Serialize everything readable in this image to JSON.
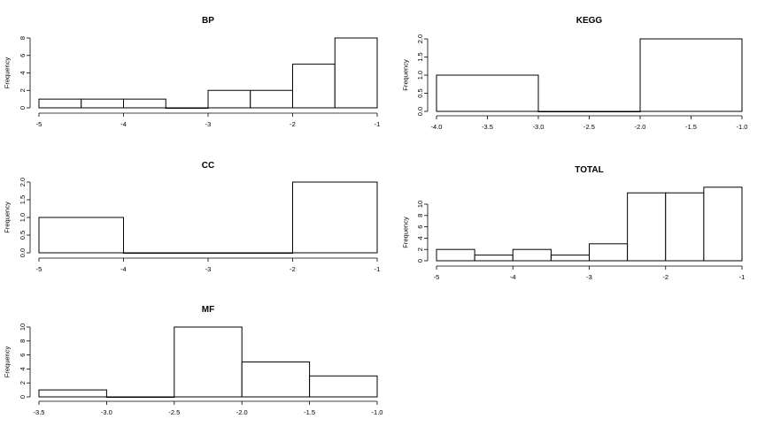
{
  "chart_data": [
    {
      "type": "bar",
      "title": "BP",
      "ylabel": "Frequency",
      "bin_edges": [
        -5,
        -4.5,
        -4,
        -3.5,
        -3,
        -2.5,
        -2,
        -1.5,
        -1
      ],
      "values": [
        1,
        1,
        1,
        0,
        2,
        2,
        5,
        8
      ],
      "xlim": [
        -5,
        -1
      ],
      "ylim": [
        0,
        8
      ],
      "xticks": [
        -5,
        -4,
        -3,
        -2,
        -1
      ],
      "xtick_labels": [
        "-5",
        "-4",
        "-3",
        "-2",
        "-1"
      ],
      "yticks": [
        0,
        2,
        4,
        6,
        8
      ],
      "ytick_labels": [
        "0",
        "2",
        "4",
        "6",
        "8"
      ],
      "grid": false
    },
    {
      "type": "bar",
      "title": "KEGG",
      "ylabel": "Frequency",
      "bin_edges": [
        -4,
        -3,
        -2,
        -1
      ],
      "values": [
        1,
        0,
        2
      ],
      "xlim": [
        -4,
        -1
      ],
      "ylim": [
        0,
        2
      ],
      "xticks": [
        -4,
        -3.5,
        -3,
        -2.5,
        -2,
        -1.5,
        -1
      ],
      "xtick_labels": [
        "-4.0",
        "-3.5",
        "-3.0",
        "-2.5",
        "-2.0",
        "-1.5",
        "-1.0"
      ],
      "yticks": [
        0,
        0.5,
        1,
        1.5,
        2
      ],
      "ytick_labels": [
        "0.0",
        "0.5",
        "1.0",
        "1.5",
        "2.0"
      ],
      "grid": false
    },
    {
      "type": "bar",
      "title": "CC",
      "ylabel": "Frequency",
      "bin_edges": [
        -5,
        -4,
        -3,
        -2,
        -1
      ],
      "values": [
        1,
        0,
        0,
        2
      ],
      "xlim": [
        -5,
        -1
      ],
      "ylim": [
        0,
        2
      ],
      "xticks": [
        -5,
        -4,
        -3,
        -2,
        -1
      ],
      "xtick_labels": [
        "-5",
        "-4",
        "-3",
        "-2",
        "-1"
      ],
      "yticks": [
        0,
        0.5,
        1,
        1.5,
        2
      ],
      "ytick_labels": [
        "0.0",
        "0.5",
        "1.0",
        "1.5",
        "2.0"
      ],
      "grid": false
    },
    {
      "type": "bar",
      "title": "TOTAL",
      "ylabel": "Frequency",
      "bin_edges": [
        -5,
        -4.5,
        -4,
        -3.5,
        -3,
        -2.5,
        -2,
        -1.5,
        -1
      ],
      "values": [
        2,
        1,
        2,
        1,
        3,
        12,
        12,
        13
      ],
      "xlim": [
        -5,
        -1
      ],
      "ylim": [
        0,
        10
      ],
      "xticks": [
        -5,
        -4,
        -3,
        -2,
        -1
      ],
      "xtick_labels": [
        "-5",
        "-4",
        "-3",
        "-2",
        "-1"
      ],
      "yticks": [
        0,
        2,
        4,
        6,
        8,
        10
      ],
      "ytick_labels": [
        "0",
        "2",
        "4",
        "6",
        "8",
        "10"
      ],
      "grid": false
    },
    {
      "type": "bar",
      "title": "MF",
      "ylabel": "Frequency",
      "bin_edges": [
        -3.5,
        -3,
        -2.5,
        -2,
        -1.5,
        -1
      ],
      "values": [
        1,
        0,
        10,
        5,
        3
      ],
      "xlim": [
        -3.5,
        -1
      ],
      "ylim": [
        0,
        10
      ],
      "xticks": [
        -3.5,
        -3,
        -2.5,
        -2,
        -1.5,
        -1
      ],
      "xtick_labels": [
        "-3.5",
        "-3.0",
        "-2.5",
        "-2.0",
        "-1.5",
        "-1.0"
      ],
      "yticks": [
        0,
        2,
        4,
        6,
        8,
        10
      ],
      "ytick_labels": [
        "0",
        "2",
        "4",
        "6",
        "8",
        "10"
      ],
      "grid": false
    }
  ]
}
